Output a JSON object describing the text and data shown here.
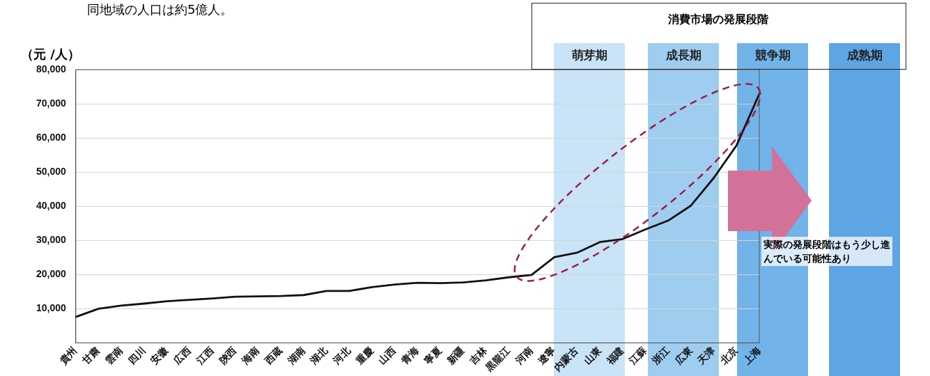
{
  "chart_data": {
    "type": "line",
    "ylabel": "（元 /人）",
    "categories": [
      "貴州",
      "甘粛",
      "雲南",
      "四川",
      "安徽",
      "広西",
      "江西",
      "陝西",
      "海南",
      "西蔵",
      "湖南",
      "湖北",
      "河北",
      "重慶",
      "山西",
      "青海",
      "寧夏",
      "新疆",
      "吉林",
      "黒龍江",
      "河南",
      "遼寧",
      "内蒙古",
      "山東",
      "福建",
      "江蘇",
      "浙江",
      "広東",
      "天津",
      "北京",
      "上海"
    ],
    "series": [
      {
        "color": "#111111",
        "values": [
          7600,
          10000,
          10900,
          11500,
          12200,
          12600,
          13000,
          13500,
          13600,
          13700,
          14000,
          15200,
          15200,
          16300,
          17100,
          17600,
          17500,
          17700,
          18300,
          19200,
          19900,
          25100,
          26400,
          29500,
          30400,
          33200,
          35800,
          40200,
          48300,
          57800,
          72900
        ]
      }
    ],
    "ylim": [
      0,
      80000
    ],
    "yticks": [
      {
        "value": 10000,
        "label": "10,000"
      },
      {
        "value": 20000,
        "label": "20,000"
      },
      {
        "value": 30000,
        "label": "30,000"
      },
      {
        "value": 40000,
        "label": "40,000"
      },
      {
        "value": 50000,
        "label": "50,000"
      },
      {
        "value": 60000,
        "label": "60,000"
      },
      {
        "value": 70000,
        "label": "70,000"
      },
      {
        "value": 80000,
        "label": "80,000"
      }
    ],
    "grid": "y",
    "legend": false,
    "marker": "none",
    "line_style": "solid",
    "annotations": [
      "同地域の人口は約5億人。",
      "消費市場の発展段階",
      "萌芽期",
      "成長期",
      "競争期",
      "成熟期",
      "実際の発展段階はもう少し進んでいる可能性あり"
    ]
  }
}
